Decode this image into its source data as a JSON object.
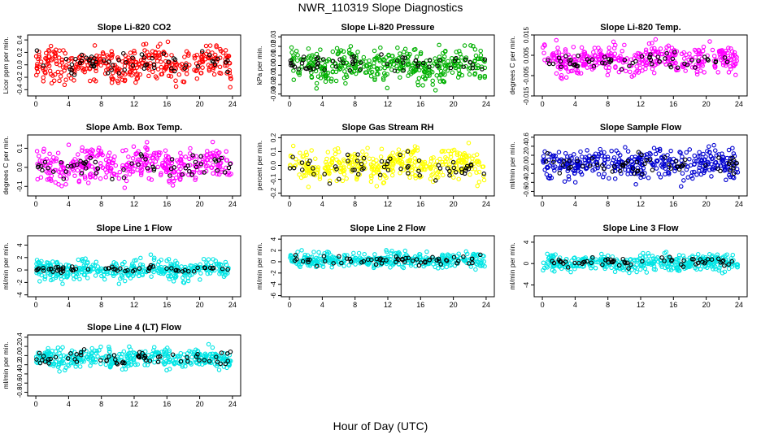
{
  "page": {
    "title": "NWR_110319  Slope Diagnostics",
    "xlabel": "Hour of Day (UTC)"
  },
  "chart_data": [
    {
      "type": "scatter",
      "title": "Slope Li-820 CO2",
      "ylabel": "Licor ppm per min.",
      "xlim": [
        -1,
        25
      ],
      "ylim": [
        -0.5,
        0.48
      ],
      "yticks": [
        -0.4,
        -0.2,
        0.0,
        0.2,
        0.4
      ],
      "xticks": [
        0,
        4,
        8,
        12,
        16,
        20,
        24
      ],
      "series": [
        {
          "name": "",
          "color": "#ff0000",
          "n": 380,
          "center": 0.0,
          "spread": 0.2,
          "noise": 0.12,
          "seed": 11
        },
        {
          "name": "",
          "color": "#000000",
          "n": 60,
          "center": 0.03,
          "spread": 0.12,
          "noise": 0.08,
          "seed": 12
        }
      ]
    },
    {
      "type": "scatter",
      "title": "Slope Li-820 Pressure",
      "ylabel": "kPa per min.",
      "xlim": [
        -1,
        25
      ],
      "ylim": [
        -0.032,
        0.032
      ],
      "yticks": [
        -0.03,
        -0.02,
        -0.01,
        0.0,
        0.01,
        0.02,
        0.03
      ],
      "xticks": [
        0,
        4,
        8,
        12,
        16,
        20,
        24
      ],
      "series": [
        {
          "name": "",
          "color": "#00b000",
          "n": 380,
          "center": 0.0,
          "spread": 0.012,
          "noise": 0.008,
          "seed": 21
        },
        {
          "name": "",
          "color": "#000000",
          "n": 60,
          "center": 0.002,
          "spread": 0.006,
          "noise": 0.004,
          "seed": 22
        }
      ]
    },
    {
      "type": "scatter",
      "title": "Slope Li-820 Temp.",
      "ylabel": "degrees C per min.",
      "xlim": [
        -1,
        25
      ],
      "ylim": [
        -0.015,
        0.015
      ],
      "yticks": [
        -0.015,
        -0.005,
        0.005,
        0.015
      ],
      "xticks": [
        0,
        4,
        8,
        12,
        16,
        20,
        24
      ],
      "series": [
        {
          "name": "",
          "color": "#ff00ff",
          "n": 380,
          "center": 0.003,
          "spread": 0.005,
          "noise": 0.003,
          "seed": 31
        },
        {
          "name": "",
          "color": "#000000",
          "n": 60,
          "center": 0.002,
          "spread": 0.003,
          "noise": 0.002,
          "seed": 32
        }
      ]
    },
    {
      "type": "scatter",
      "title": "Slope Amb. Box Temp.",
      "ylabel": "degrees C per min.",
      "xlim": [
        -1,
        25
      ],
      "ylim": [
        -0.15,
        0.17
      ],
      "yticks": [
        -0.1,
        0.0,
        0.1
      ],
      "xticks": [
        0,
        4,
        8,
        12,
        16,
        20,
        24
      ],
      "series": [
        {
          "name": "",
          "color": "#ff00ff",
          "n": 380,
          "center": 0.01,
          "spread": 0.06,
          "noise": 0.04,
          "seed": 41
        },
        {
          "name": "",
          "color": "#000000",
          "n": 60,
          "center": 0.0,
          "spread": 0.04,
          "noise": 0.03,
          "seed": 42
        }
      ]
    },
    {
      "type": "scatter",
      "title": "Slope Gas Stream RH",
      "ylabel": "percent per min.",
      "xlim": [
        -1,
        25
      ],
      "ylim": [
        -0.22,
        0.22
      ],
      "yticks": [
        -0.2,
        -0.1,
        0.0,
        0.1,
        0.2
      ],
      "xticks": [
        0,
        4,
        8,
        12,
        16,
        20,
        24
      ],
      "series": [
        {
          "name": "",
          "color": "#ffff00",
          "n": 380,
          "center": 0.0,
          "spread": 0.08,
          "noise": 0.05,
          "seed": 51
        },
        {
          "name": "",
          "color": "#000000",
          "n": 60,
          "center": -0.01,
          "spread": 0.06,
          "noise": 0.04,
          "seed": 52
        }
      ]
    },
    {
      "type": "scatter",
      "title": "Slope Sample Flow",
      "ylabel": "ml/min per min.",
      "xlim": [
        -1,
        25
      ],
      "ylim": [
        -0.7,
        0.65
      ],
      "yticks": [
        -0.6,
        -0.4,
        -0.2,
        0.0,
        0.2,
        0.4,
        0.6
      ],
      "xticks": [
        0,
        4,
        8,
        12,
        16,
        20,
        24
      ],
      "series": [
        {
          "name": "",
          "color": "#0000d0",
          "n": 380,
          "center": 0.0,
          "spread": 0.22,
          "noise": 0.15,
          "seed": 61
        },
        {
          "name": "",
          "color": "#000000",
          "n": 60,
          "center": 0.02,
          "spread": 0.15,
          "noise": 0.1,
          "seed": 62
        }
      ]
    },
    {
      "type": "scatter",
      "title": "Slope Line 1 Flow",
      "ylabel": "ml/min per min.",
      "xlim": [
        -1,
        25
      ],
      "ylim": [
        -4.3,
        5.5
      ],
      "yticks": [
        -4,
        -2,
        0,
        2,
        4
      ],
      "xticks": [
        0,
        4,
        8,
        12,
        16,
        20,
        24
      ],
      "series": [
        {
          "name": "",
          "color": "#00e5e5",
          "n": 380,
          "center": 0.0,
          "spread": 1.1,
          "noise": 0.7,
          "seed": 71
        },
        {
          "name": "",
          "color": "#000000",
          "n": 60,
          "center": 0.1,
          "spread": 0.35,
          "noise": 0.25,
          "seed": 72
        }
      ]
    },
    {
      "type": "scatter",
      "title": "Slope Line 2 Flow",
      "ylabel": "ml/min per min.",
      "xlim": [
        -1,
        25
      ],
      "ylim": [
        -6.2,
        4.6
      ],
      "yticks": [
        -6,
        -4,
        -2,
        0,
        2,
        4
      ],
      "xticks": [
        0,
        4,
        8,
        12,
        16,
        20,
        24
      ],
      "series": [
        {
          "name": "",
          "color": "#00e5e5",
          "n": 380,
          "center": 0.3,
          "spread": 1.0,
          "noise": 0.6,
          "seed": 81
        },
        {
          "name": "",
          "color": "#000000",
          "n": 60,
          "center": 0.3,
          "spread": 0.6,
          "noise": 0.4,
          "seed": 82
        }
      ]
    },
    {
      "type": "scatter",
      "title": "Slope Line 3 Flow",
      "ylabel": "ml/min per min.",
      "xlim": [
        -1,
        25
      ],
      "ylim": [
        -6.2,
        5.2
      ],
      "yticks": [
        -4,
        0,
        4
      ],
      "xticks": [
        0,
        4,
        8,
        12,
        16,
        20,
        24
      ],
      "series": [
        {
          "name": "",
          "color": "#00e5e5",
          "n": 380,
          "center": 0.2,
          "spread": 1.1,
          "noise": 0.7,
          "seed": 91
        },
        {
          "name": "",
          "color": "#000000",
          "n": 60,
          "center": 0.3,
          "spread": 0.7,
          "noise": 0.5,
          "seed": 92
        }
      ]
    },
    {
      "type": "scatter",
      "title": "Slope Line 4 (LT) Flow",
      "ylabel": "ml/min per min.",
      "xlim": [
        -1,
        25
      ],
      "ylim": [
        -0.88,
        0.45
      ],
      "yticks": [
        -0.8,
        -0.6,
        -0.4,
        -0.2,
        0.0,
        0.2,
        0.4
      ],
      "xticks": [
        0,
        4,
        8,
        12,
        16,
        20,
        24
      ],
      "series": [
        {
          "name": "",
          "color": "#00e5e5",
          "n": 380,
          "center": -0.05,
          "spread": 0.15,
          "noise": 0.1,
          "seed": 101
        },
        {
          "name": "",
          "color": "#000000",
          "n": 60,
          "center": -0.05,
          "spread": 0.1,
          "noise": 0.07,
          "seed": 102
        }
      ]
    }
  ]
}
